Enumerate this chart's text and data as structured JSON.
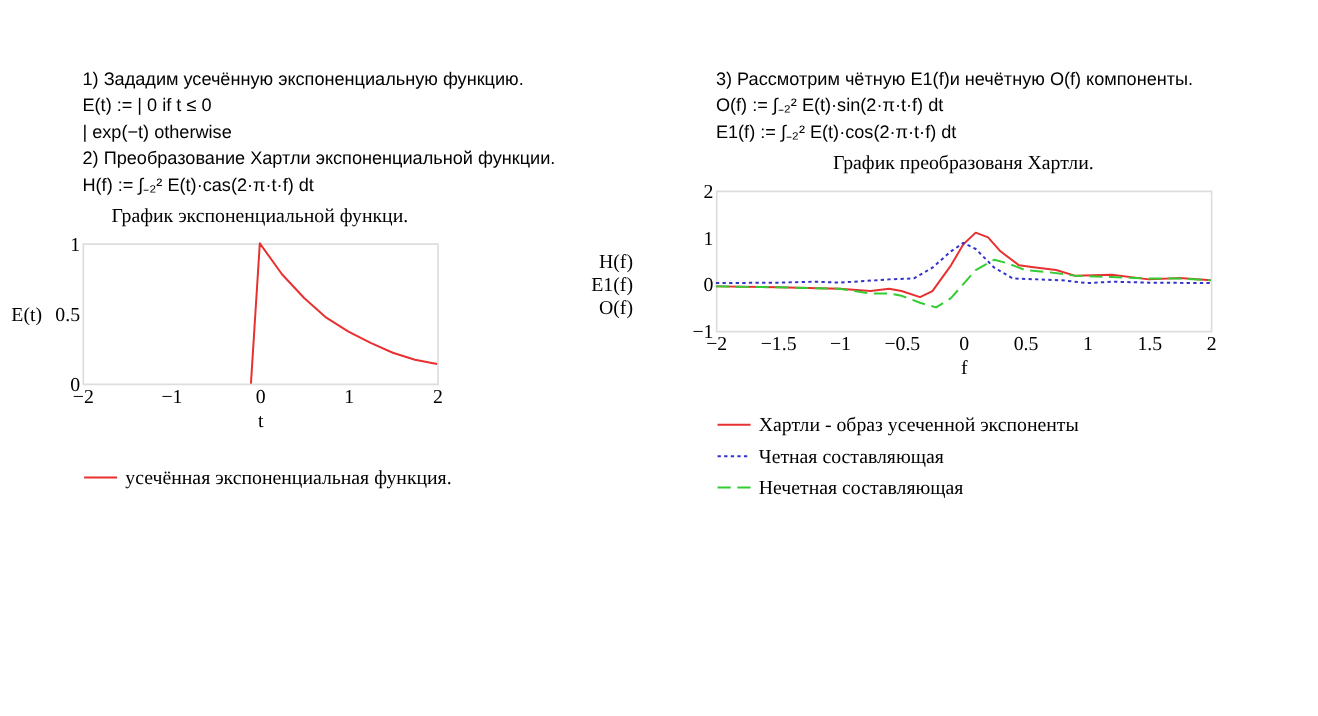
{
  "chart_data": [
    {
      "type": "line",
      "title": "График экспоненциальной функци.",
      "xlabel": "t",
      "ylabel": "E(t)",
      "annotations": [
        "1) Зададим усечённую экспоненциальную функцию.",
        "E(t) :=  | 0  if  t ≤ 0",
        "              | exp(−t)   otherwise",
        "2) Преобразование Хартли экспоненциальной функции.",
        "H(f) := ∫₋₂² E(t)·cas(2·π·t·f) dt"
      ],
      "xlim": [
        -2,
        2
      ],
      "xticks": [
        -2,
        -1,
        0,
        1,
        2
      ],
      "ylim": [
        0,
        1
      ],
      "yticks": [
        0,
        0.5,
        1
      ],
      "grid": false,
      "legend": "bottom",
      "series": [
        {
          "name": "усечённая экспоненциальная функция.",
          "color": "#e83030",
          "line_style": "solid",
          "x": [
            -0.1,
            0,
            0.25,
            0.5,
            0.75,
            1,
            1.25,
            1.5,
            1.75,
            2
          ],
          "values": [
            0,
            1,
            0.78,
            0.61,
            0.47,
            0.37,
            0.29,
            0.22,
            0.17,
            0.14
          ]
        }
      ]
    },
    {
      "type": "line",
      "title": "График преобразованя Хартли.",
      "xlabel": "f",
      "ylabel": "H(f) E1(f) O(f)",
      "annotations": [
        "3) Рассмотрим чётную E1(f)и нечётную  O(f)  компоненты.",
        "O(f) := ∫₋₂² E(t)·sin(2·π·t·f) dt",
        "E1(f) := ∫₋₂² E(t)·cos(2·π·t·f) dt"
      ],
      "xlim": [
        -2,
        2
      ],
      "xticks": [
        -2,
        -1.5,
        -1,
        -0.5,
        0,
        0.5,
        1,
        1.5,
        2
      ],
      "ylim": [
        -1,
        2
      ],
      "yticks": [
        -1,
        0,
        1,
        2
      ],
      "grid": false,
      "legend": "bottom",
      "series": [
        {
          "name": "Хартли - образ усеченной экспоненты",
          "color": "#e83030",
          "line_style": "solid",
          "x": [
            -2,
            -1.5,
            -1,
            -0.75,
            -0.6,
            -0.5,
            -0.35,
            -0.25,
            -0.1,
            0,
            0.1,
            0.2,
            0.3,
            0.45,
            0.6,
            0.75,
            0.9,
            1.2,
            1.5,
            1.75,
            2
          ],
          "values": [
            -0.05,
            -0.07,
            -0.1,
            -0.15,
            -0.1,
            -0.15,
            -0.28,
            -0.15,
            0.4,
            0.85,
            1.1,
            1.0,
            0.7,
            0.4,
            0.35,
            0.3,
            0.18,
            0.2,
            0.1,
            0.13,
            0.08
          ]
        },
        {
          "name": "Четная составляющая",
          "color": "#3333cc",
          "line_style": "dotted",
          "x": [
            -2,
            -1.5,
            -1.2,
            -1,
            -0.6,
            -0.4,
            -0.25,
            -0.1,
            0,
            0.1,
            0.25,
            0.4,
            0.6,
            0.8,
            1,
            1.2,
            1.5,
            2
          ],
          "values": [
            0.02,
            0.03,
            0.05,
            0.03,
            0.1,
            0.12,
            0.35,
            0.7,
            0.88,
            0.75,
            0.35,
            0.12,
            0.1,
            0.08,
            0.02,
            0.05,
            0.03,
            0.02
          ]
        },
        {
          "name": "Нечетная составляющая",
          "color": "#33cc33",
          "line_style": "dashed",
          "x": [
            -2,
            -1.5,
            -1,
            -0.75,
            -0.6,
            -0.5,
            -0.35,
            -0.22,
            -0.1,
            0,
            0.1,
            0.25,
            0.35,
            0.5,
            0.7,
            0.9,
            1.2,
            1.5,
            1.75,
            2
          ],
          "values": [
            -0.05,
            -0.07,
            -0.1,
            -0.2,
            -0.2,
            -0.25,
            -0.4,
            -0.5,
            -0.3,
            0,
            0.3,
            0.52,
            0.45,
            0.3,
            0.25,
            0.18,
            0.15,
            0.12,
            0.12,
            0.08
          ]
        }
      ]
    }
  ]
}
